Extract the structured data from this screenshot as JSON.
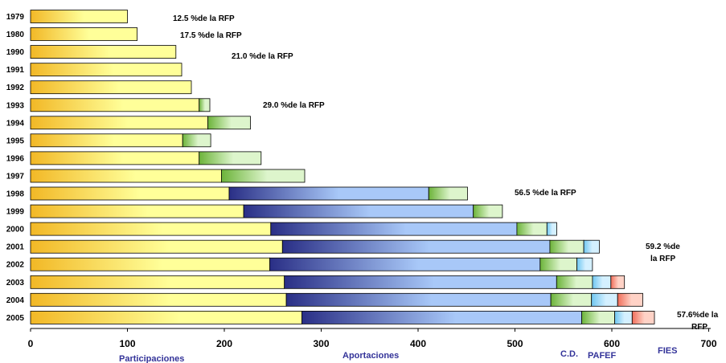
{
  "chart_data": {
    "type": "bar",
    "orientation": "horizontal",
    "stacked": true,
    "categories": [
      "1979",
      "1980",
      "1990",
      "1991",
      "1992",
      "1993",
      "1994",
      "1995",
      "1996",
      "1997",
      "1998",
      "1999",
      "2000",
      "2001",
      "2002",
      "2003",
      "2004",
      "2005"
    ],
    "series": [
      {
        "key": "participaciones",
        "values": [
          100,
          110,
          150,
          156,
          166,
          174,
          183,
          157,
          174,
          197,
          205,
          220,
          248,
          260,
          247,
          262,
          264,
          280
        ],
        "color_start": "#F2B826",
        "color_end": "#FFFF99"
      },
      {
        "key": "aportaciones",
        "values": [
          0,
          0,
          0,
          0,
          0,
          0,
          0,
          0,
          0,
          0,
          206,
          237,
          254,
          276,
          279,
          281,
          273,
          289
        ],
        "color_start": "#2A2F86",
        "color_end": "#A8C8F8"
      },
      {
        "key": "cd",
        "values": [
          0,
          0,
          0,
          0,
          0,
          11,
          44,
          29,
          64,
          86,
          40,
          30,
          31,
          35,
          38,
          37,
          42,
          34
        ],
        "color_start": "#6CB33A",
        "color_end": "#DDF5CC"
      },
      {
        "key": "pafef",
        "values": [
          0,
          0,
          0,
          0,
          0,
          0,
          0,
          0,
          0,
          0,
          0,
          0,
          10,
          16,
          16,
          19,
          27,
          18
        ],
        "color_start": "#6FC6F0",
        "color_end": "#D4F0FF"
      },
      {
        "key": "fies",
        "values": [
          0,
          0,
          0,
          0,
          0,
          0,
          0,
          0,
          0,
          0,
          0,
          0,
          0,
          0,
          0,
          14,
          26,
          23
        ],
        "color_start": "#F06E5A",
        "color_end": "#FFD2C6"
      }
    ],
    "xlim": [
      0,
      700
    ],
    "xticks": [
      "0",
      "100",
      "200",
      "300",
      "400",
      "500",
      "600",
      "700"
    ],
    "xtick_values": [
      0,
      100,
      200,
      300,
      400,
      500,
      600,
      700
    ],
    "category_labels": {
      "participaciones": "Participaciones",
      "aportaciones": "Aportaciones",
      "cd": "C.D.",
      "pafef": "PAFEF",
      "fies": "FIES"
    },
    "annotations": [
      {
        "text": "12.5 %de la RFP",
        "row": 0
      },
      {
        "text": "17.5 %de la RFP",
        "row": 1
      },
      {
        "text": "21.0 %de la RFP",
        "row": 2
      },
      {
        "text": "29.0 %de la RFP",
        "row": 5
      },
      {
        "text": "56.5 %de la RFP",
        "row": 10
      },
      {
        "text": "59.2 %de",
        "row": 13,
        "line2": "la RFP"
      },
      {
        "text": "57.6%de la",
        "row": 17,
        "line2": "RFP"
      }
    ],
    "grid": false,
    "legend": "none"
  }
}
